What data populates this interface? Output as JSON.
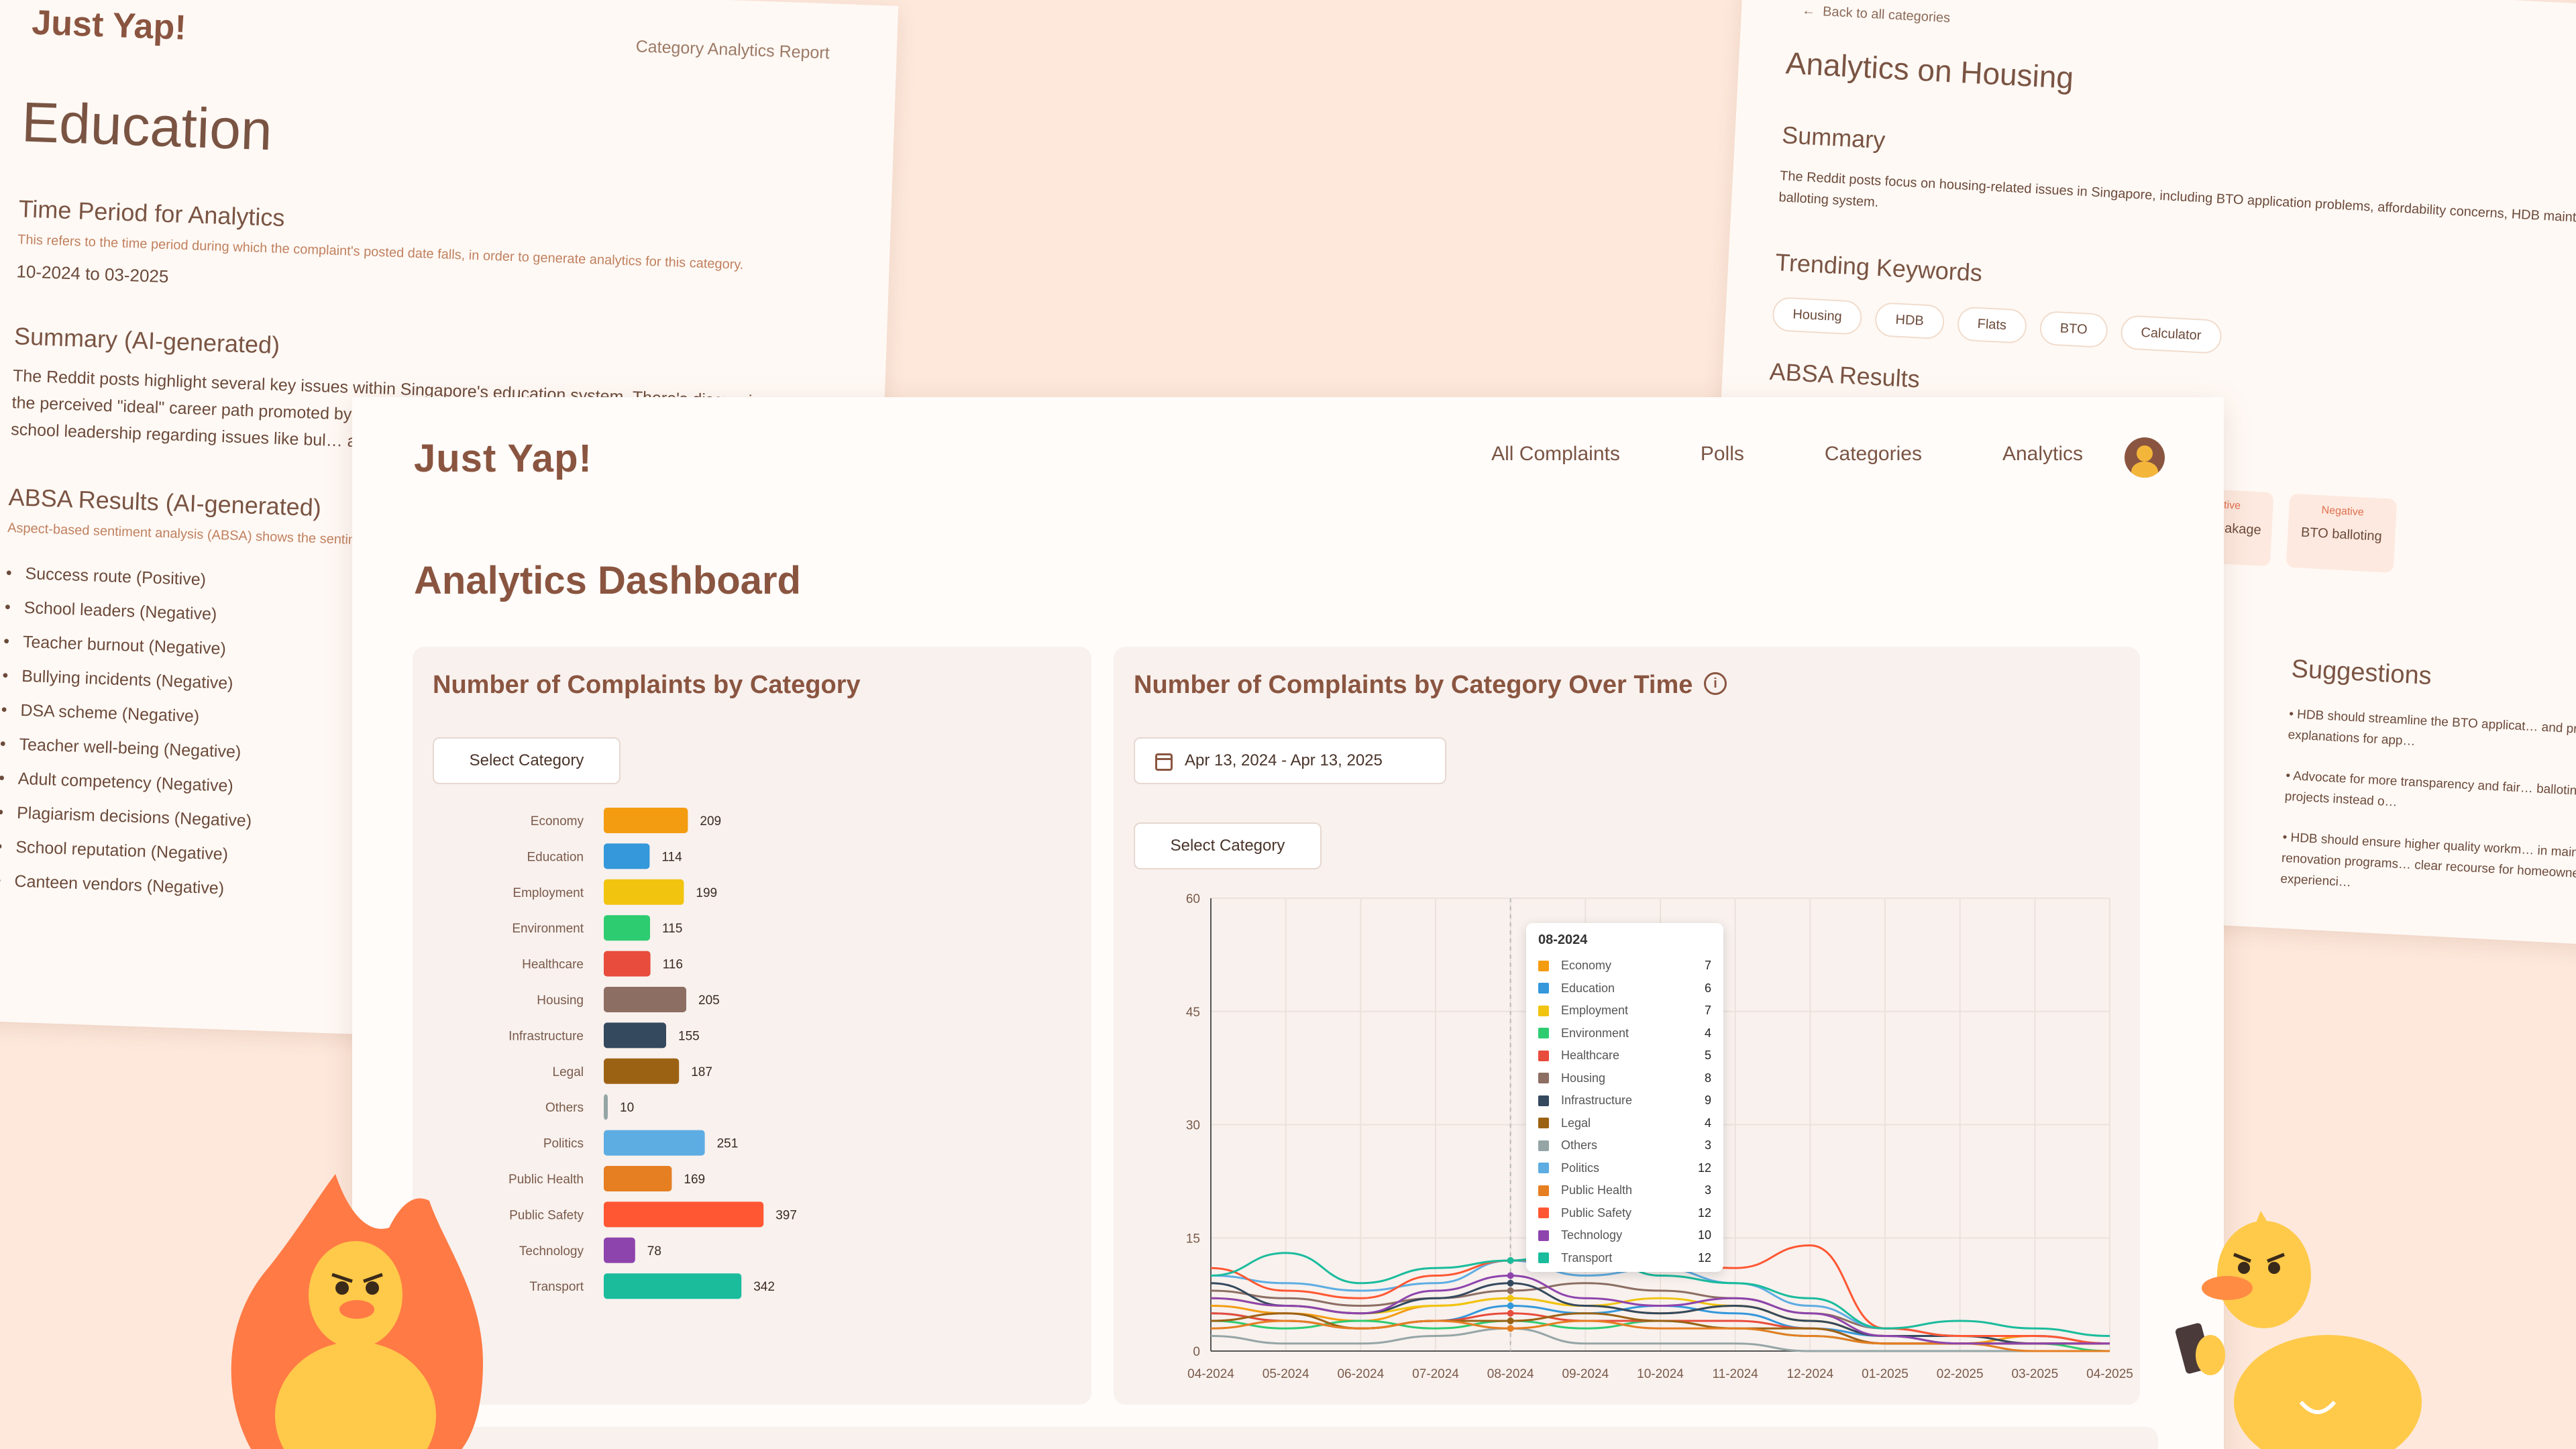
{
  "brand": {
    "logo_text": "Just Yap!"
  },
  "left_sheet": {
    "report_label": "Category Analytics Report",
    "title": "Education",
    "time_period_heading": "Time Period for Analytics",
    "time_period_note": "This refers to the time period during which the complaint's posted date falls, in order to generate analytics for this category.",
    "time_period_value": "10-2024 to 03-2025",
    "summary_heading": "Summary (AI-generated)",
    "summary_text": "The Reddit posts highlight several key issues within Singapore's education system. There's discussion around the perceived \"ideal\" career path promoted by par… are raised about the well-being of educators, v… from school leadership regarding issues like bul… adult competency rankings, and canteen vend… institutions.",
    "absa_heading": "ABSA Results (AI-generated)",
    "absa_note": "Aspect-based sentiment analysis (ABSA) shows the sentim",
    "absa_items": [
      "Success route (Positive)",
      "School leaders (Negative)",
      "Teacher burnout (Negative)",
      "Bullying incidents (Negative)",
      "DSA scheme (Negative)",
      "Teacher well-being (Negative)",
      "Adult competency (Negative)",
      "Plagiarism decisions (Negative)",
      "School reputation (Negative)",
      "Canteen vendors (Negative)"
    ]
  },
  "right_sheet": {
    "back_link": "Back to all categories",
    "title": "Analytics on Housing",
    "summary_heading": "Summary",
    "summary_text": "The Reddit posts focus on housing-related issues in Singapore, including BTO application problems, affordability concerns, HDB maintenance… balloting system.",
    "trending_heading": "Trending Keywords",
    "keywords": [
      "Housing",
      "HDB",
      "Flats",
      "BTO",
      "Calculator"
    ],
    "absa_heading": "ABSA Results",
    "absa_cards": [
      {
        "label": "Negative",
        "aspect": "Water leakage"
      },
      {
        "label": "Negative",
        "aspect": "BTO balloting"
      }
    ],
    "suggestions_heading": "Suggestions",
    "suggestions": [
      "HDB should streamline the BTO applicat… and provide clearer explanations for app…",
      "Advocate for more transparency and fair… balloting for individual projects instead o…",
      "HDB should ensure higher quality workm… in maintenance and renovation programs… clear recourse for homeowners experienci…"
    ]
  },
  "nav": {
    "items": [
      "All Complaints",
      "Polls",
      "Categories",
      "Analytics"
    ]
  },
  "page": {
    "title": "Analytics Dashboard"
  },
  "card_category": {
    "title": "Number of Complaints by Category",
    "select_label": "Select Category"
  },
  "card_time": {
    "title": "Number of Complaints by Category Over Time",
    "date_range": "Apr 13, 2024 - Apr 13, 2025",
    "select_label": "Select Category"
  },
  "colors": {
    "Economy": "#f39c12",
    "Education": "#3498db",
    "Employment": "#f1c40f",
    "Environment": "#2ecc71",
    "Healthcare": "#e74c3c",
    "Housing": "#8d6e63",
    "Infrastructure": "#34495e",
    "Legal": "#9c6214",
    "Others": "#95a5a6",
    "Politics": "#5dade2",
    "Public Health": "#e67e22",
    "Public Safety": "#ff5733",
    "Technology": "#8e44ad",
    "Transport": "#1abc9c"
  },
  "chart_data": [
    {
      "type": "bar",
      "orientation": "horizontal",
      "categories": [
        "Economy",
        "Education",
        "Employment",
        "Environment",
        "Healthcare",
        "Housing",
        "Infrastructure",
        "Legal",
        "Others",
        "Politics",
        "Public Health",
        "Public Safety",
        "Technology",
        "Transport"
      ],
      "values": [
        209,
        114,
        199,
        115,
        116,
        205,
        155,
        187,
        10,
        251,
        169,
        397,
        78,
        342
      ]
    },
    {
      "type": "line",
      "x": [
        "04-2024",
        "05-2024",
        "06-2024",
        "07-2024",
        "08-2024",
        "09-2024",
        "10-2024",
        "11-2024",
        "12-2024",
        "01-2025",
        "02-2025",
        "03-2025",
        "04-2025"
      ],
      "ylim": [
        0,
        60
      ],
      "yticks": [
        0,
        15,
        30,
        45,
        60
      ],
      "tooltip": {
        "month": "08-2024",
        "rows": [
          {
            "name": "Economy",
            "value": 7
          },
          {
            "name": "Education",
            "value": 6
          },
          {
            "name": "Employment",
            "value": 7
          },
          {
            "name": "Environment",
            "value": 4
          },
          {
            "name": "Healthcare",
            "value": 5
          },
          {
            "name": "Housing",
            "value": 8
          },
          {
            "name": "Infrastructure",
            "value": 9
          },
          {
            "name": "Legal",
            "value": 4
          },
          {
            "name": "Others",
            "value": 3
          },
          {
            "name": "Politics",
            "value": 12
          },
          {
            "name": "Public Health",
            "value": 3
          },
          {
            "name": "Public Safety",
            "value": 12
          },
          {
            "name": "Technology",
            "value": 10
          },
          {
            "name": "Transport",
            "value": 12
          }
        ]
      },
      "series": [
        {
          "name": "Economy",
          "values": [
            6,
            5,
            4,
            6,
            7,
            6,
            5,
            6,
            4,
            2,
            1,
            2,
            1
          ]
        },
        {
          "name": "Education",
          "values": [
            5,
            4,
            3,
            4,
            6,
            5,
            6,
            5,
            3,
            2,
            1,
            1,
            1
          ]
        },
        {
          "name": "Employment",
          "values": [
            7,
            6,
            5,
            6,
            7,
            6,
            7,
            6,
            4,
            2,
            2,
            1,
            1
          ]
        },
        {
          "name": "Environment",
          "values": [
            4,
            3,
            4,
            3,
            4,
            3,
            4,
            3,
            2,
            1,
            1,
            1,
            0
          ]
        },
        {
          "name": "Healthcare",
          "values": [
            5,
            4,
            3,
            4,
            5,
            4,
            4,
            4,
            3,
            1,
            1,
            1,
            1
          ]
        },
        {
          "name": "Housing",
          "values": [
            8,
            7,
            6,
            7,
            8,
            9,
            8,
            7,
            5,
            3,
            2,
            2,
            1
          ]
        },
        {
          "name": "Infrastructure",
          "values": [
            9,
            6,
            5,
            7,
            9,
            6,
            5,
            6,
            4,
            2,
            2,
            1,
            1
          ]
        },
        {
          "name": "Legal",
          "values": [
            4,
            5,
            3,
            4,
            4,
            5,
            4,
            3,
            3,
            1,
            1,
            1,
            1
          ]
        },
        {
          "name": "Others",
          "values": [
            2,
            1,
            1,
            2,
            3,
            1,
            1,
            1,
            0,
            0,
            0,
            0,
            0
          ]
        },
        {
          "name": "Politics",
          "values": [
            10,
            9,
            8,
            9,
            12,
            10,
            11,
            9,
            6,
            3,
            2,
            2,
            1
          ]
        },
        {
          "name": "Public Health",
          "values": [
            3,
            4,
            3,
            4,
            3,
            4,
            3,
            3,
            2,
            1,
            1,
            0,
            0
          ]
        },
        {
          "name": "Public Safety",
          "values": [
            11,
            8,
            7,
            10,
            12,
            13,
            12,
            11,
            14,
            3,
            2,
            2,
            1
          ]
        },
        {
          "name": "Technology",
          "values": [
            7,
            6,
            5,
            8,
            10,
            7,
            6,
            7,
            5,
            2,
            1,
            1,
            1
          ]
        },
        {
          "name": "Transport",
          "values": [
            10,
            13,
            9,
            11,
            12,
            14,
            10,
            9,
            7,
            3,
            4,
            3,
            2
          ]
        }
      ]
    }
  ]
}
